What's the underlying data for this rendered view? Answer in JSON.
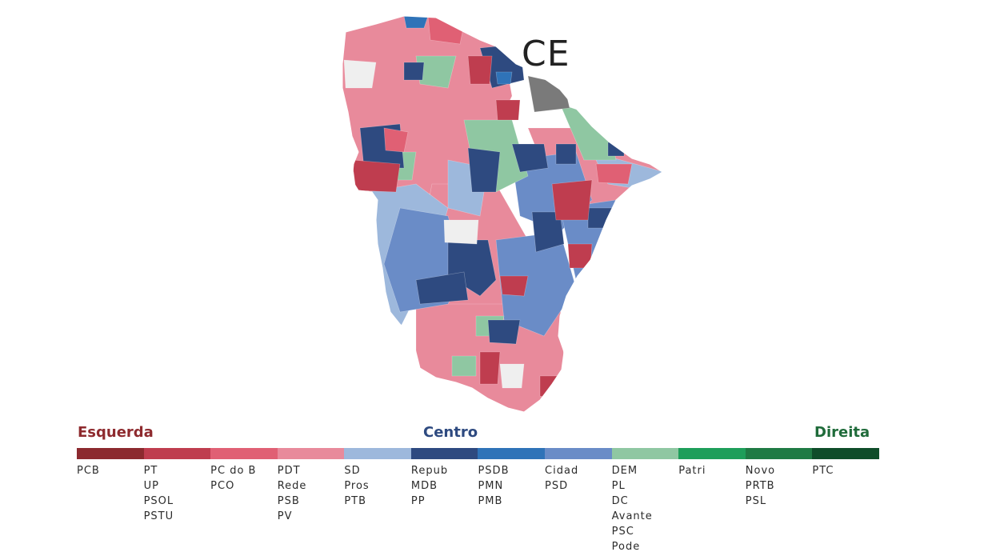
{
  "map": {
    "state_label": "CE",
    "colors": {
      "dark_red": "#8c2a2f",
      "red": "#bf3d4f",
      "pink_red": "#e06074",
      "pink": "#e88a9b",
      "light_blue": "#9db8dc",
      "navy": "#2e4a80",
      "blue": "#2f73b8",
      "steel_blue": "#6a8cc7",
      "light_green": "#8fc7a2",
      "green": "#1e9e5a",
      "dark_green": "#1f7a44",
      "darkest_green": "#0f4d2a",
      "gray": "#7a7a7a",
      "no_data": "#efefef"
    }
  },
  "legend": {
    "groups": {
      "left": {
        "label": "Esquerda",
        "color": "#8e2a2e"
      },
      "center": {
        "label": "Centro",
        "color": "#2e4a80"
      },
      "right": {
        "label": "Direita",
        "color": "#1f6b3a"
      }
    },
    "segments": [
      {
        "color": "#8c2a2f",
        "parties": [
          "PCB"
        ]
      },
      {
        "color": "#bf3d4f",
        "parties": [
          "PT",
          "UP",
          "PSOL",
          "PSTU"
        ]
      },
      {
        "color": "#e06074",
        "parties": [
          "PC do B",
          "PCO"
        ]
      },
      {
        "color": "#e88a9b",
        "parties": [
          "PDT",
          "Rede",
          "PSB",
          "PV"
        ]
      },
      {
        "color": "#9db8dc",
        "parties": [
          "SD",
          "Pros",
          "PTB"
        ]
      },
      {
        "color": "#2e4a80",
        "parties": [
          "Repub",
          "MDB",
          "PP"
        ]
      },
      {
        "color": "#2f73b8",
        "parties": [
          "PSDB",
          "PMN",
          "PMB"
        ]
      },
      {
        "color": "#6a8cc7",
        "parties": [
          "Cidad",
          "PSD"
        ]
      },
      {
        "color": "#8fc7a2",
        "parties": [
          "DEM",
          "PL",
          "DC",
          "Avante",
          "PSC",
          "Pode"
        ]
      },
      {
        "color": "#1e9e5a",
        "parties": [
          "Patri"
        ]
      },
      {
        "color": "#1f7a44",
        "parties": [
          "Novo",
          "PRTB",
          "PSL"
        ]
      },
      {
        "color": "#0f4d2a",
        "parties": [
          "PTC"
        ]
      }
    ]
  }
}
